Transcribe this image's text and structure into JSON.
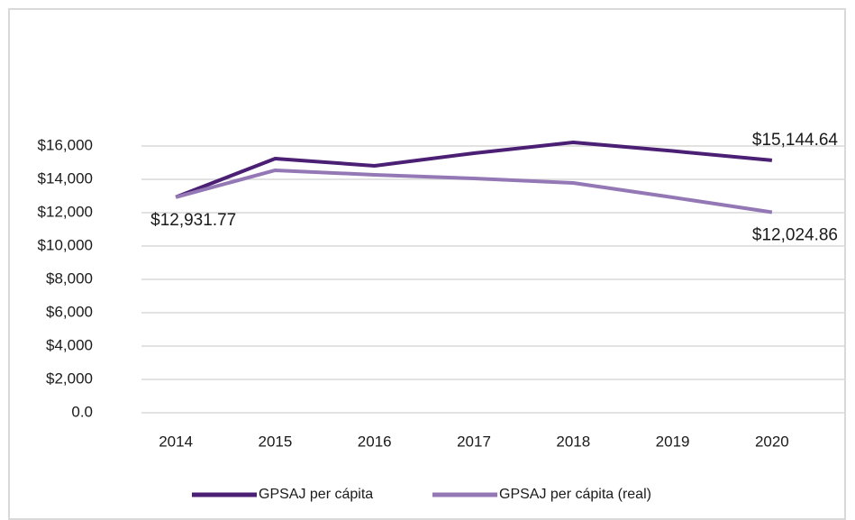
{
  "chart_data": {
    "type": "line",
    "categories": [
      "2014",
      "2015",
      "2016",
      "2017",
      "2018",
      "2019",
      "2020"
    ],
    "series": [
      {
        "name": "GPSAJ per cápita",
        "color": "#4b1f74",
        "values": [
          12931.77,
          15243,
          14811,
          15568,
          16216,
          15700,
          15144.64
        ],
        "value_labels": [
          "$12,931.77",
          null,
          null,
          null,
          null,
          null,
          "$15,144.64"
        ]
      },
      {
        "name": "GPSAJ per cápita (real)",
        "color": "#9478b5",
        "values": [
          12931.77,
          14541,
          14270,
          14054,
          13784,
          12919,
          12024.86
        ],
        "value_labels": [
          null,
          null,
          null,
          null,
          null,
          null,
          "$12,024.86"
        ]
      }
    ],
    "ylim": [
      0,
      18000
    ],
    "yticks": [
      {
        "value": 0,
        "label": "0.0"
      },
      {
        "value": 2000,
        "label": "$2,000"
      },
      {
        "value": 4000,
        "label": "$4,000"
      },
      {
        "value": 6000,
        "label": "$6,000"
      },
      {
        "value": 8000,
        "label": "$8,000"
      },
      {
        "value": 10000,
        "label": "$10,000"
      },
      {
        "value": 12000,
        "label": "$12,000"
      },
      {
        "value": 14000,
        "label": "$14,000"
      },
      {
        "value": 16000,
        "label": "$16,000"
      }
    ],
    "grid": true,
    "legend": "bottom"
  }
}
